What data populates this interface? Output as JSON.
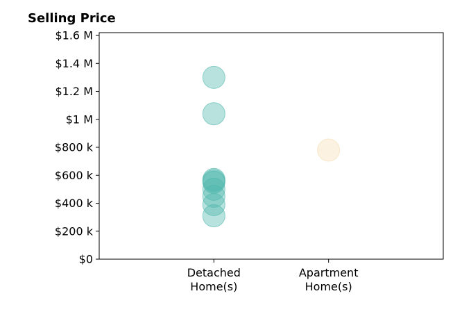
{
  "chart_data": {
    "type": "scatter",
    "title": "Selling Price",
    "xlabel": "",
    "ylabel": "",
    "categories": [
      "Detached\nHome(s)",
      "Apartment\nHome(s)"
    ],
    "x_range": [
      0,
      3
    ],
    "ylim": [
      0,
      1620000
    ],
    "y_ticks": [
      0,
      200000,
      400000,
      600000,
      800000,
      1000000,
      1200000,
      1400000,
      1600000
    ],
    "y_tick_labels": [
      "$0",
      "$200 k",
      "$400 k",
      "$600 k",
      "$800 k",
      "$1 M",
      "$1.2 M",
      "$1.4 M",
      "$1.6 M"
    ],
    "grid": false,
    "series": [
      {
        "category": "Detached\nHome(s)",
        "color": "#4db6ac",
        "values": [
          1300000,
          1040000,
          570000,
          560000,
          550000,
          500000,
          450000,
          390000,
          310000
        ]
      },
      {
        "category": "Apartment\nHome(s)",
        "color": "#f5deb3",
        "values": [
          780000
        ]
      }
    ]
  }
}
